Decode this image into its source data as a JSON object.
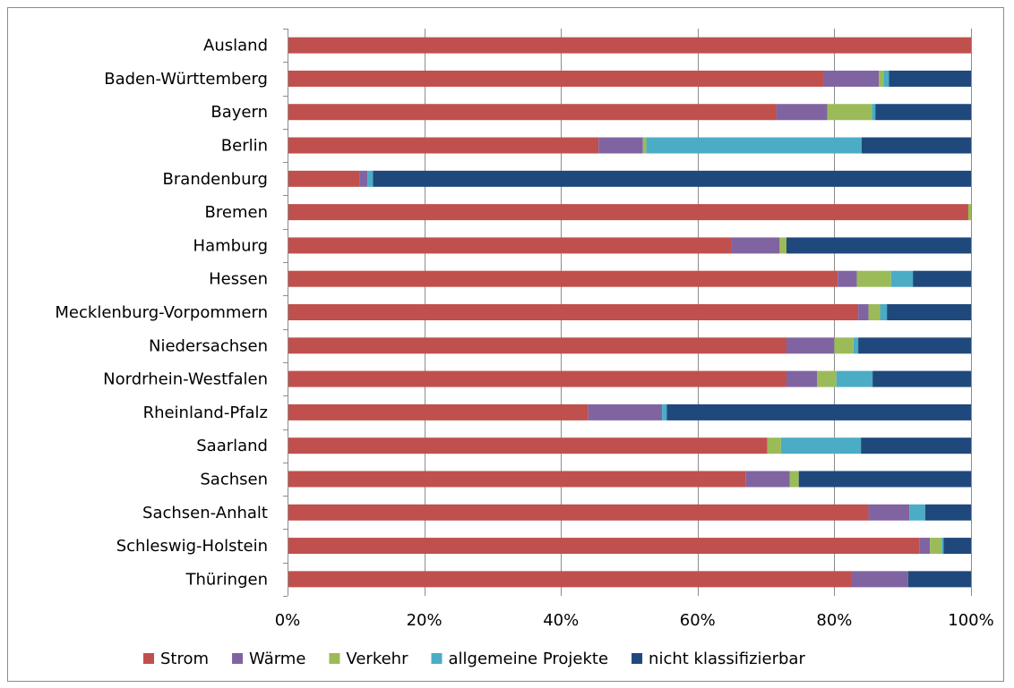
{
  "chart_data": {
    "type": "bar",
    "orientation": "horizontal",
    "stacked": "percent",
    "categories": [
      "Ausland",
      "Baden-Württemberg",
      "Bayern",
      "Berlin",
      "Brandenburg",
      "Bremen",
      "Hamburg",
      "Hessen",
      "Mecklenburg-Vorpommern",
      "Niedersachsen",
      "Nordrhein-Westfalen",
      "Rheinland-Pfalz",
      "Saarland",
      "Sachsen",
      "Sachsen-Anhalt",
      "Schleswig-Holstein",
      "Thüringen"
    ],
    "series": [
      {
        "name": "Strom",
        "color": "#c0504d",
        "values": [
          100,
          78.5,
          71.5,
          45.5,
          10.5,
          99.6,
          65,
          80.5,
          83.5,
          73,
          73,
          44,
          70.2,
          67,
          85,
          92.5,
          82.5
        ]
      },
      {
        "name": "Wärme",
        "color": "#8064a2",
        "values": [
          0,
          8,
          7.5,
          6.5,
          1.2,
          0,
          7,
          2.8,
          1.5,
          7,
          4.5,
          10.8,
          0,
          6.5,
          6,
          1.5,
          8.3
        ]
      },
      {
        "name": "Verkehr",
        "color": "#9bbb59",
        "values": [
          0,
          0.7,
          6.5,
          0.5,
          0,
          0.4,
          1,
          5,
          1.7,
          2.8,
          2.8,
          0,
          2,
          1.3,
          0,
          1.7,
          0
        ]
      },
      {
        "name": "allgemeine Projekte",
        "color": "#4bacc6",
        "values": [
          0,
          0.8,
          0.5,
          31.5,
          0.8,
          0,
          0,
          3.2,
          1,
          0.7,
          5.3,
          0.7,
          11.7,
          0,
          2.3,
          0.3,
          0
        ]
      },
      {
        "name": "nicht klassifizierbar",
        "color": "#1f497d",
        "values": [
          0,
          12,
          14,
          16,
          87.5,
          0,
          27,
          8.5,
          12.3,
          16.5,
          14.4,
          44.5,
          16.1,
          25.2,
          6.7,
          4,
          9.2
        ]
      }
    ],
    "x_ticks": [
      "0%",
      "20%",
      "40%",
      "60%",
      "80%",
      "100%"
    ],
    "xlim": [
      0,
      100
    ],
    "grid": "vertical",
    "legend": "bottom"
  }
}
